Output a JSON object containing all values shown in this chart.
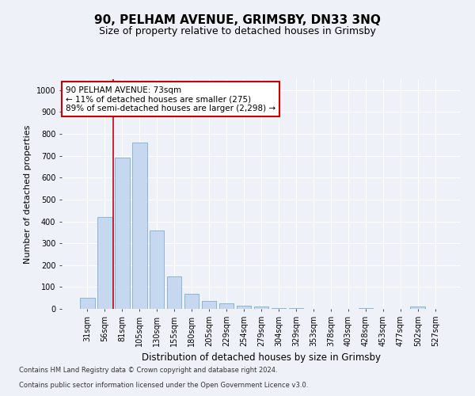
{
  "title1": "90, PELHAM AVENUE, GRIMSBY, DN33 3NQ",
  "title2": "Size of property relative to detached houses in Grimsby",
  "xlabel": "Distribution of detached houses by size in Grimsby",
  "ylabel": "Number of detached properties",
  "categories": [
    "31sqm",
    "56sqm",
    "81sqm",
    "105sqm",
    "130sqm",
    "155sqm",
    "180sqm",
    "205sqm",
    "229sqm",
    "254sqm",
    "279sqm",
    "304sqm",
    "329sqm",
    "353sqm",
    "378sqm",
    "403sqm",
    "428sqm",
    "453sqm",
    "477sqm",
    "502sqm",
    "527sqm"
  ],
  "values": [
    50,
    420,
    690,
    760,
    360,
    150,
    70,
    38,
    25,
    15,
    10,
    5,
    3,
    0,
    0,
    0,
    5,
    0,
    0,
    10,
    0
  ],
  "bar_color": "#c5d8f0",
  "bar_edge_color": "#7bafd4",
  "vline_x_idx": 1,
  "vline_color": "#cc0000",
  "annotation_text": "90 PELHAM AVENUE: 73sqm\n← 11% of detached houses are smaller (275)\n89% of semi-detached houses are larger (2,298) →",
  "annotation_box_color": "white",
  "annotation_box_edge_color": "#cc0000",
  "ylim": [
    0,
    1050
  ],
  "yticks": [
    0,
    100,
    200,
    300,
    400,
    500,
    600,
    700,
    800,
    900,
    1000
  ],
  "footer1": "Contains HM Land Registry data © Crown copyright and database right 2024.",
  "footer2": "Contains public sector information licensed under the Open Government Licence v3.0.",
  "bg_color": "#eef2f8",
  "plot_bg_color": "#eef2f8",
  "grid_color": "white",
  "title1_fontsize": 11,
  "title2_fontsize": 9,
  "xlabel_fontsize": 8.5,
  "ylabel_fontsize": 8,
  "tick_fontsize": 7,
  "annotation_fontsize": 7.5,
  "footer_fontsize": 6
}
